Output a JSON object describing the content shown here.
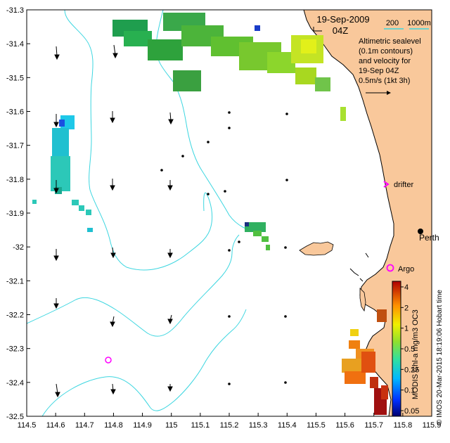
{
  "title": {
    "date": "19-Sep-2009",
    "time": "04Z"
  },
  "depth_legend": {
    "label_200": "200",
    "label_1000": "1000m"
  },
  "info_box": {
    "line1": "Altimetric sealevel",
    "line2": "(0.1m contours)",
    "line3": "and velocity for",
    "line4": "19-Sep 04Z",
    "line5": "0.5m/s (1kt 3h)"
  },
  "markers": {
    "drifter_label": "drifter",
    "argo_label": "Argo",
    "perth_label": "Perth"
  },
  "colorbar": {
    "caption": "MODIS Chl-a mg/m3 OC3",
    "ticks": [
      "4",
      "2",
      "1",
      "0.5",
      "0.25",
      "0.1",
      "0.05"
    ]
  },
  "credit": "© IMOS 20-Mar-2015 18:19:06 Hobart time",
  "axes": {
    "x_ticks": [
      "114.5",
      "114.6",
      "114.7",
      "114.8",
      "114.9",
      "115",
      "115.1",
      "115.2",
      "115.3",
      "115.4",
      "115.5",
      "115.6",
      "115.7",
      "115.8",
      "115.9"
    ],
    "y_ticks": [
      "-31.3",
      "-31.4",
      "-31.5",
      "-31.6",
      "-31.7",
      "-31.8",
      "-31.9",
      "-32",
      "-32.1",
      "-32.2",
      "-32.3",
      "-32.4",
      "-32.5"
    ]
  },
  "colors": {
    "land": "#f9c89b",
    "isobath": "#3cd6e0",
    "drifter": "#ff00ff",
    "perth": "#000000"
  }
}
